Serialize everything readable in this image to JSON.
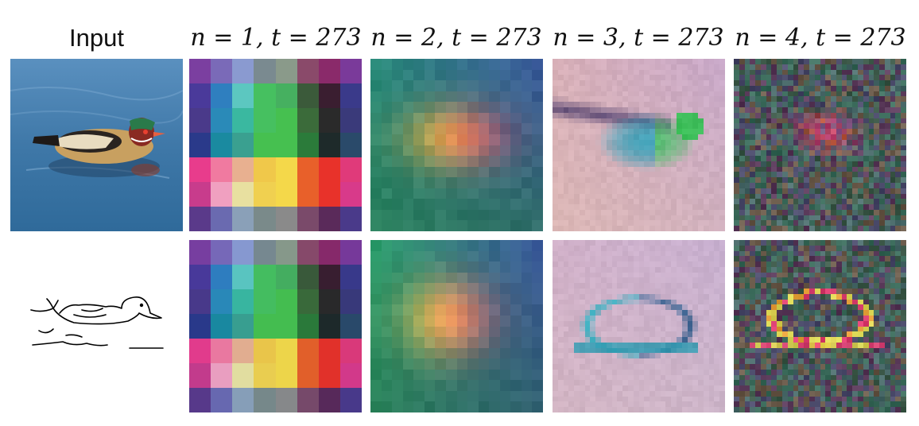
{
  "headers": {
    "input": "Input",
    "n1": "n = 1, t = 273",
    "n2": "n = 2, t = 273",
    "n3": "n = 3, t = 273",
    "n4": "n = 4, t = 273"
  },
  "colors": {
    "water": "#3f78a8",
    "background": "#ffffff",
    "n1_palette": [
      "#7b3fa0",
      "#2f7fbf",
      "#5cc7bf",
      "#46c060",
      "#3b6b45",
      "#1e2a2a",
      "#e83c8c",
      "#f4d84a",
      "#e8322a",
      "#5a3a8a"
    ],
    "n2_palette": [
      "#2f9a6a",
      "#6cc07a",
      "#f0b040",
      "#e83e7a",
      "#3a5a8a"
    ],
    "n3_palette": [
      "#c8a8c0",
      "#2a8a7a",
      "#5cd0c8",
      "#3a6a8a",
      "#d9b8b0"
    ],
    "n4_palette": [
      "#3e5a4a",
      "#6a4a6a",
      "#e8e050",
      "#e83a70",
      "#f05030"
    ]
  }
}
